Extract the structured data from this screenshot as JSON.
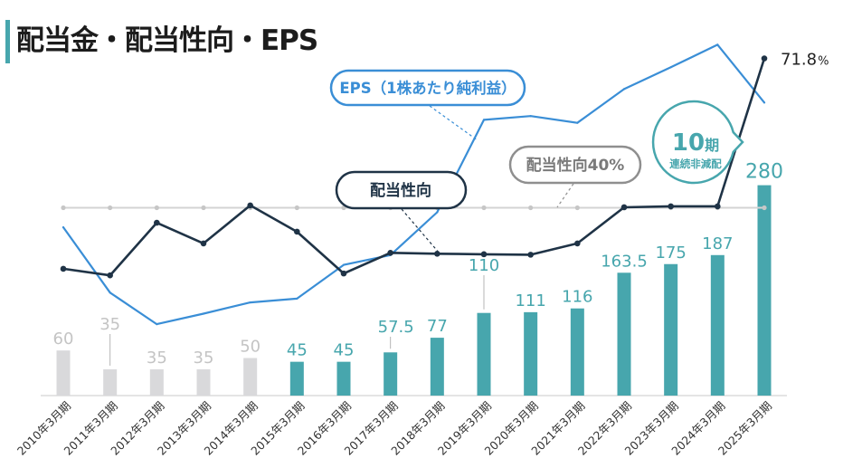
{
  "colors": {
    "accent": "#47a6ad",
    "past_bar": "#d9d9db",
    "past_label": "#c4c4c4",
    "eps": "#3a8ed6",
    "payout": "#1f3346",
    "reference_line": "#d3d3d3",
    "reference_dot": "#c6c6c6",
    "reference_callout": "#8f8f8f",
    "axis_line": "#dcdcdc",
    "leader_line": "#b5b5b5",
    "tick_text": "#333333",
    "value_text": "#222222"
  },
  "chart_data": {
    "type": "bar",
    "title": "配当金・配当性向・EPS",
    "categories": [
      "2010年3月期",
      "2011年3月期",
      "2012年3月期",
      "2013年3月期",
      "2014年3月期",
      "2015年3月期",
      "2016年3月期",
      "2017年3月期",
      "2018年3月期",
      "2019年3月期",
      "2020年3月期",
      "2021年3月期",
      "2022年3月期",
      "2023年3月期",
      "2024年3月期",
      "2025年3月期"
    ],
    "series": [
      {
        "type": "bar",
        "axis": "left",
        "values": [
          60,
          35,
          35,
          35,
          50,
          45,
          45,
          57.5,
          77,
          110,
          111,
          116,
          163.5,
          175,
          187,
          280
        ],
        "colors": [
          "#d9d9db",
          "#d9d9db",
          "#d9d9db",
          "#d9d9db",
          "#d9d9db",
          "#47a6ad",
          "#47a6ad",
          "#47a6ad",
          "#47a6ad",
          "#47a6ad",
          "#47a6ad",
          "#47a6ad",
          "#47a6ad",
          "#47a6ad",
          "#47a6ad",
          "#47a6ad"
        ]
      },
      {
        "name": "EPS（1株あたり純利益）",
        "type": "line",
        "axis": "left",
        "values": [
          224,
          137,
          95,
          109,
          124,
          129,
          174,
          187,
          244,
          367,
          372,
          363,
          408,
          437,
          467,
          390
        ]
      },
      {
        "name": "配当性向",
        "type": "line",
        "axis": "right",
        "unit": "%",
        "values": [
          27.0,
          25.6,
          36.8,
          32.4,
          40.5,
          34.9,
          26.0,
          30.4,
          30.2,
          30.1,
          30.0,
          32.4,
          40.1,
          40.3,
          40.3,
          71.8
        ]
      }
    ],
    "reference_line": {
      "axis": "right",
      "value": 40,
      "label": "配当性向40%"
    },
    "badge": {
      "count": "10",
      "count_unit": "期",
      "text": "連続非減配"
    },
    "ylim": [
      0,
      500
    ],
    "y2lim": [
      0,
      80
    ],
    "grid": false,
    "legend": "none"
  }
}
